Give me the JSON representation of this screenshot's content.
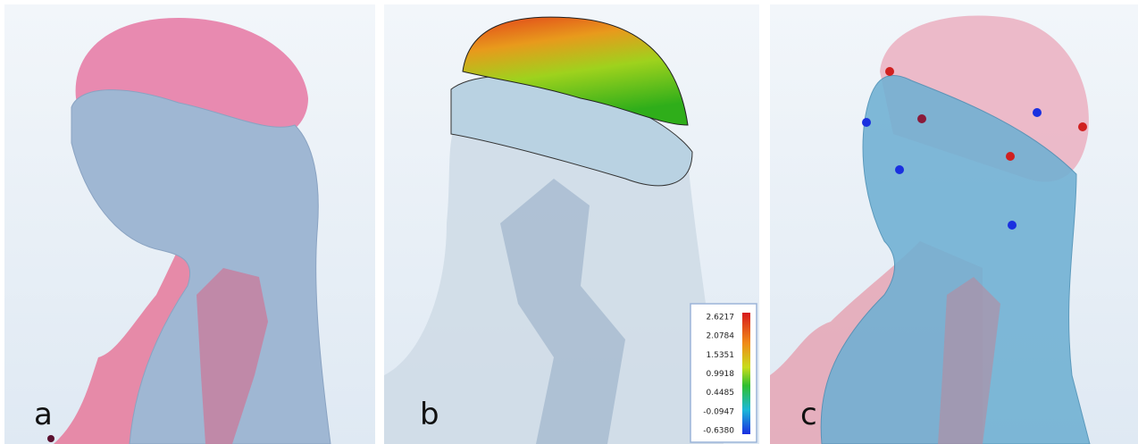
{
  "panels": [
    {
      "label": "a"
    },
    {
      "label": "b"
    },
    {
      "label": "c"
    }
  ],
  "colorbar": {
    "labels": [
      "2.6217",
      "2.0784",
      "1.5351",
      "0.9918",
      "0.4485",
      "-0.0947",
      "-0.6380"
    ]
  }
}
